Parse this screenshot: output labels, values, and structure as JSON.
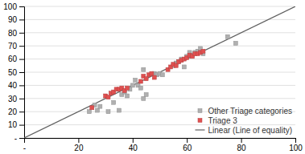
{
  "chart_data": {
    "type": "scatter",
    "xlim": [
      0,
      100
    ],
    "ylim": [
      0,
      100
    ],
    "xticks": [
      {
        "value": 0,
        "label": "-"
      },
      20,
      40,
      60,
      80,
      100
    ],
    "yticks": [
      {
        "value": 0,
        "label": "-"
      },
      10,
      20,
      30,
      40,
      50,
      60,
      70,
      80,
      90,
      100
    ],
    "grid": "y",
    "legend": "lower right",
    "series": [
      {
        "name": "Other Triage categories",
        "type": "scatter",
        "marker": "square",
        "color": "#b0b0b0",
        "x": [
          24,
          27,
          26,
          28,
          31,
          33,
          35,
          36,
          37,
          38,
          39,
          40,
          41,
          42,
          43,
          44,
          44,
          45,
          48,
          49,
          50,
          51,
          55,
          56,
          57,
          58,
          59,
          60,
          61,
          62,
          63,
          64,
          65,
          66,
          75,
          78
        ],
        "values": [
          20,
          21,
          25,
          24,
          20,
          27,
          21,
          33,
          35,
          32,
          37,
          40,
          44,
          40,
          38,
          30,
          52,
          33,
          49,
          48,
          49,
          48,
          55,
          57,
          58,
          60,
          54,
          62,
          65,
          63,
          65,
          66,
          68,
          64,
          77,
          72
        ]
      },
      {
        "name": "Triage 3",
        "type": "scatter",
        "marker": "square",
        "color": "#e05050",
        "x": [
          25,
          30,
          31,
          32,
          33,
          34,
          35,
          36,
          37,
          38,
          43,
          44,
          45,
          46,
          47,
          48,
          53,
          54,
          55,
          56,
          57,
          58,
          59,
          60,
          61,
          62,
          63,
          64,
          65,
          66
        ],
        "values": [
          23,
          32,
          31,
          34,
          35,
          37,
          37,
          38,
          36,
          38,
          43,
          47,
          45,
          48,
          49,
          46,
          52,
          54,
          56,
          55,
          58,
          59,
          60,
          61,
          63,
          62,
          64,
          64,
          65,
          66
        ]
      },
      {
        "name": "Linear (Line of equality)",
        "type": "line",
        "line_style": "solid",
        "color": "#606060",
        "x": [
          0,
          100
        ],
        "values": [
          0,
          100
        ]
      }
    ]
  }
}
